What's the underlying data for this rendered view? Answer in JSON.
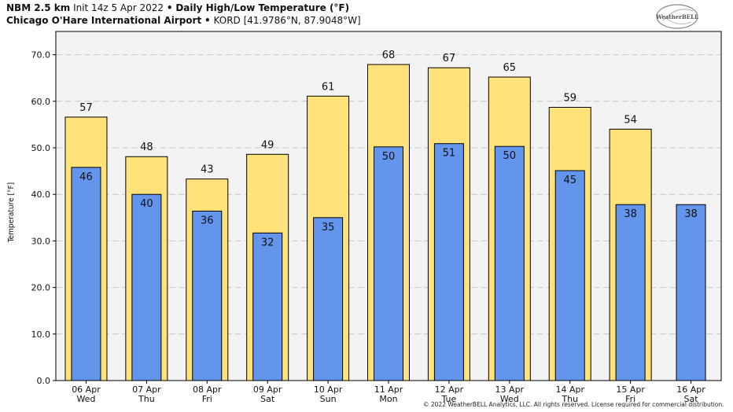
{
  "header": {
    "line1_bold1": "NBM 2.5 km",
    "line1_normal1": "Init 14z 5 Apr 2022",
    "line1_bullet": "•",
    "line1_bold2": "Daily High/Low Temperature (°F)",
    "line2_bold": "Chicago O'Hare International Airport",
    "line2_bullet": "•",
    "line2_normal": "KORD [41.9786°N, 87.9048°W]"
  },
  "logo": {
    "icon": "weatherbell-logo",
    "text": "WeatherBELL"
  },
  "footer": "© 2022 WeatherBELL Analytics, LLC. All rights reserved. License required for commercial distribution.",
  "colors": {
    "high": "#FFE27A",
    "low": "#6495ED",
    "plot_bg": "#F3F3F3",
    "grid": "#C8C8C8",
    "bar_edge": "#000000"
  },
  "chart_data": {
    "type": "bar",
    "title": "Daily High/Low Temperature (°F)",
    "ylabel": "Temperature [°F]",
    "xlabel": "",
    "ylim": [
      0,
      75
    ],
    "yticks": [
      "0.0",
      "10.0",
      "20.0",
      "30.0",
      "40.0",
      "50.0",
      "60.0",
      "70.0"
    ],
    "grid": true,
    "categories": [
      [
        "06 Apr",
        "Wed"
      ],
      [
        "07 Apr",
        "Thu"
      ],
      [
        "08 Apr",
        "Fri"
      ],
      [
        "09 Apr",
        "Sat"
      ],
      [
        "10 Apr",
        "Sun"
      ],
      [
        "11 Apr",
        "Mon"
      ],
      [
        "12 Apr",
        "Tue"
      ],
      [
        "13 Apr",
        "Wed"
      ],
      [
        "14 Apr",
        "Thu"
      ],
      [
        "15 Apr",
        "Fri"
      ],
      [
        "16 Apr",
        "Sat"
      ]
    ],
    "series": [
      {
        "name": "",
        "kind": "high",
        "values": [
          56.6,
          48.1,
          43.3,
          48.6,
          61.1,
          67.9,
          67.2,
          65.2,
          58.7,
          54.0,
          null
        ],
        "labels": [
          "57",
          "48",
          "43",
          "49",
          "61",
          "68",
          "67",
          "65",
          "59",
          "54",
          ""
        ]
      },
      {
        "name": "",
        "kind": "low",
        "values": [
          45.8,
          40.0,
          36.4,
          31.7,
          35.0,
          50.2,
          50.9,
          50.3,
          45.1,
          37.8,
          37.8
        ],
        "labels": [
          "46",
          "40",
          "36",
          "32",
          "35",
          "50",
          "51",
          "50",
          "45",
          "38",
          "38"
        ]
      }
    ]
  }
}
